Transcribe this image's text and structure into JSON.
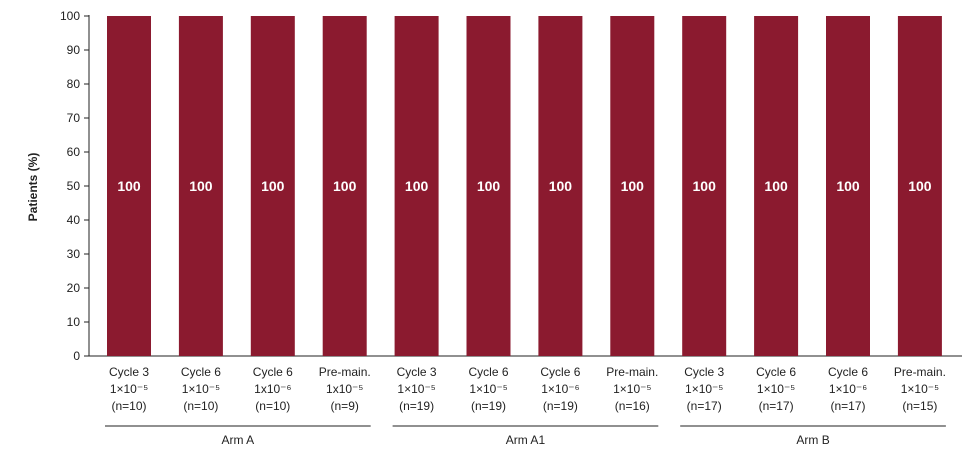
{
  "chart_data": {
    "type": "bar",
    "ylabel": "Patients (%)",
    "ylim": [
      0,
      100
    ],
    "yticks": [
      0,
      10,
      20,
      30,
      40,
      50,
      60,
      70,
      80,
      90,
      100
    ],
    "bar_color": "#8b1a2f",
    "grid": false,
    "categories": [
      {
        "lines": [
          "Cycle 3",
          "1×10⁻⁵",
          "(n=10)"
        ]
      },
      {
        "lines": [
          "Cycle 6",
          "1×10⁻⁵",
          "(n=10)"
        ]
      },
      {
        "lines": [
          "Cycle 6",
          "1x10⁻⁶",
          "(n=10)"
        ]
      },
      {
        "lines": [
          "Pre-main.",
          "1x10⁻⁵",
          "(n=9)"
        ]
      },
      {
        "lines": [
          "Cycle 3",
          "1×10⁻⁵",
          "(n=19)"
        ]
      },
      {
        "lines": [
          "Cycle 6",
          "1×10⁻⁵",
          "(n=19)"
        ]
      },
      {
        "lines": [
          "Cycle 6",
          "1×10⁻⁶",
          "(n=19)"
        ]
      },
      {
        "lines": [
          "Pre-main.",
          "1×10⁻⁵",
          "(n=16)"
        ]
      },
      {
        "lines": [
          "Cycle 3",
          "1×10⁻⁵",
          "(n=17)"
        ]
      },
      {
        "lines": [
          "Cycle 6",
          "1×10⁻⁵",
          "(n=17)"
        ]
      },
      {
        "lines": [
          "Cycle 6",
          "1×10⁻⁶",
          "(n=17)"
        ]
      },
      {
        "lines": [
          "Pre-main.",
          "1×10⁻⁵",
          "(n=15)"
        ]
      }
    ],
    "values": [
      100,
      100,
      100,
      100,
      100,
      100,
      100,
      100,
      100,
      100,
      100,
      100
    ],
    "data_labels": [
      "100",
      "100",
      "100",
      "100",
      "100",
      "100",
      "100",
      "100",
      "100",
      "100",
      "100",
      "100"
    ],
    "groups": [
      {
        "label": "Arm A",
        "start": 0,
        "end": 3
      },
      {
        "label": "Arm A1",
        "start": 4,
        "end": 7
      },
      {
        "label": "Arm B",
        "start": 8,
        "end": 11
      }
    ]
  }
}
